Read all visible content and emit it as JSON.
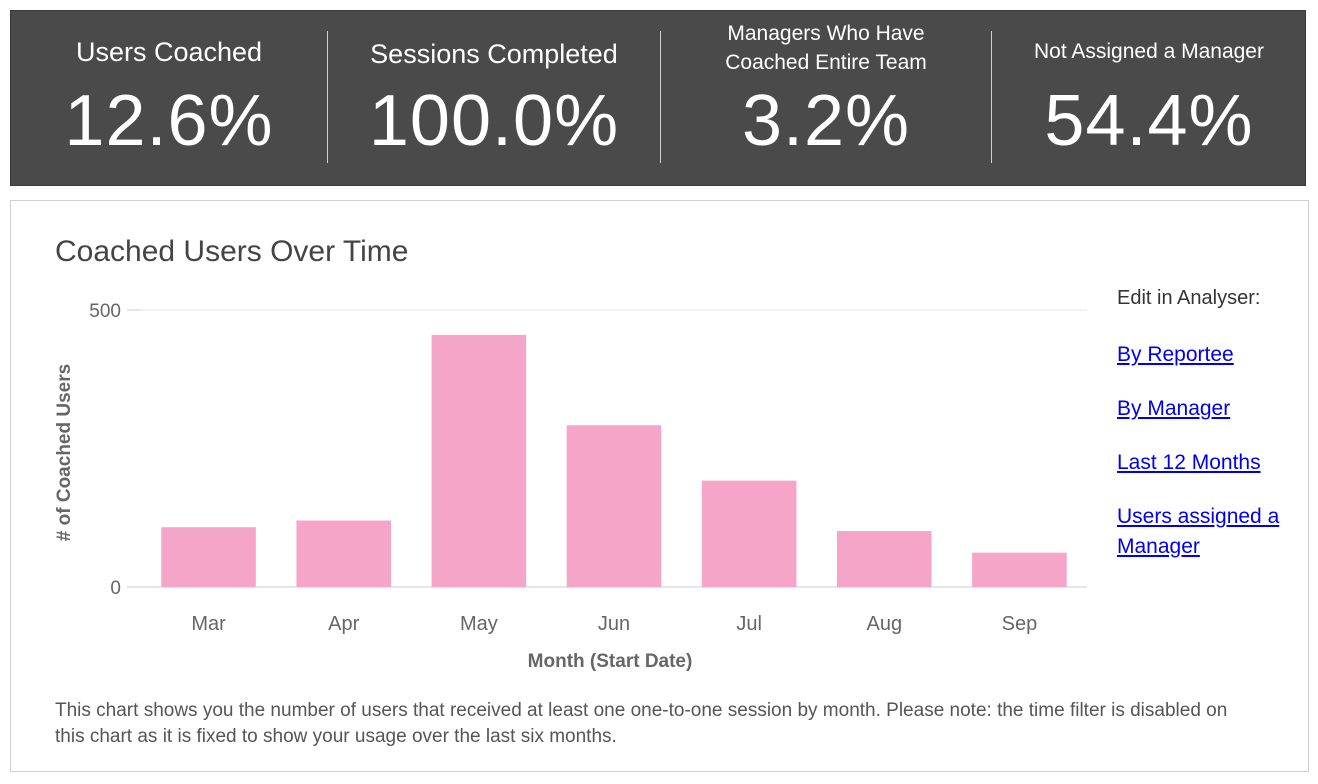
{
  "kpis": [
    {
      "label": "Users Coached",
      "value": "12.6%"
    },
    {
      "label": "Sessions Completed",
      "value": "100.0%"
    },
    {
      "label": "Managers Who Have\nCoached Entire Team",
      "value": "3.2%"
    },
    {
      "label": "Not Assigned a Manager",
      "value": "54.4%"
    }
  ],
  "panel": {
    "title": "Coached Users Over Time",
    "edit_heading": "Edit in Analyser:",
    "links": [
      "By Reportee",
      "By Manager",
      "Last 12 Months",
      "Users assigned a Manager"
    ],
    "note": "This chart shows you the number of users that received at least one one-to-one session by month. Please note: the time filter is disabled on this chart as it is fixed to show your usage over the last six months."
  },
  "colors": {
    "band": "#4a4a4a",
    "bar": "#f5a6c8",
    "link": "#0000ee"
  },
  "chart_data": {
    "type": "bar",
    "categories": [
      "Mar",
      "Apr",
      "May",
      "Jun",
      "Jul",
      "Aug",
      "Sep"
    ],
    "values": [
      108,
      120,
      455,
      292,
      192,
      101,
      62
    ],
    "title": "Coached Users Over Time",
    "xlabel": "Month (Start Date)",
    "ylabel": "# of Coached Users",
    "ylim": [
      0,
      500
    ],
    "yticks": [
      0,
      500
    ],
    "grid": true
  }
}
